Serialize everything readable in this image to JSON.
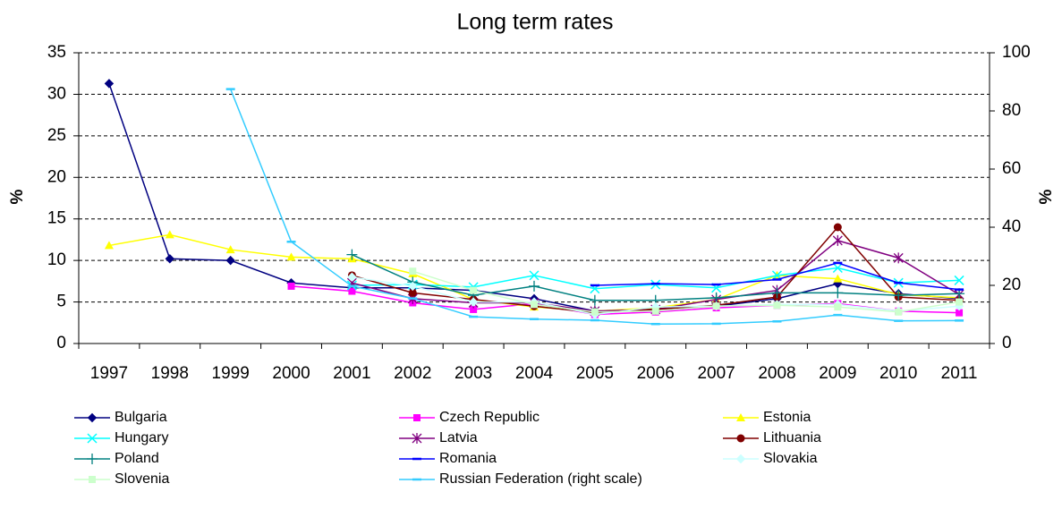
{
  "chart_data": {
    "type": "line",
    "title": "Long term rates",
    "y_label": "%",
    "y2_label": "%",
    "categories": [
      "1997",
      "1998",
      "1999",
      "2000",
      "2001",
      "2002",
      "2003",
      "2004",
      "2005",
      "2006",
      "2007",
      "2008",
      "2009",
      "2010",
      "2011"
    ],
    "ylim": [
      0,
      35
    ],
    "yticks": [
      0,
      5,
      10,
      15,
      20,
      25,
      30,
      35
    ],
    "y2lim": [
      0,
      100
    ],
    "y2ticks": [
      0,
      20,
      40,
      60,
      80,
      100
    ],
    "grid": true,
    "series": [
      {
        "name": "Bulgaria",
        "color": "#000080",
        "marker": "diamond",
        "values": [
          31.3,
          10.2,
          10.0,
          7.3,
          6.7,
          6.7,
          6.4,
          5.4,
          3.9,
          4.2,
          4.5,
          5.4,
          7.2,
          6.0,
          5.4
        ]
      },
      {
        "name": "Czech Republic",
        "color": "#ff00ff",
        "marker": "square",
        "values": [
          null,
          null,
          null,
          6.9,
          6.3,
          4.9,
          4.1,
          4.8,
          3.5,
          3.8,
          4.3,
          4.6,
          4.8,
          3.9,
          3.7
        ]
      },
      {
        "name": "Estonia",
        "color": "#ffff00",
        "marker": "triangle",
        "values": [
          11.8,
          13.1,
          11.3,
          10.4,
          10.2,
          8.4,
          5.3,
          4.4,
          3.9,
          4.3,
          5.3,
          8.2,
          7.8,
          5.9,
          5.5
        ]
      },
      {
        "name": "Hungary",
        "color": "#00ffff",
        "marker": "x",
        "values": [
          null,
          null,
          null,
          null,
          7.0,
          7.1,
          6.8,
          8.2,
          6.6,
          7.1,
          6.7,
          8.2,
          9.1,
          7.3,
          7.6
        ]
      },
      {
        "name": "Latvia",
        "color": "#800080",
        "marker": "star",
        "values": [
          null,
          null,
          null,
          null,
          7.3,
          5.4,
          4.9,
          4.9,
          3.9,
          4.1,
          5.3,
          6.4,
          12.4,
          10.3,
          5.9
        ]
      },
      {
        "name": "Lithuania",
        "color": "#800000",
        "marker": "circle",
        "values": [
          null,
          null,
          null,
          null,
          8.2,
          6.1,
          5.3,
          4.5,
          3.7,
          4.1,
          4.6,
          5.6,
          14.0,
          5.6,
          5.2
        ]
      },
      {
        "name": "Poland",
        "color": "#008080",
        "marker": "plus",
        "values": [
          null,
          null,
          null,
          null,
          10.7,
          7.4,
          5.8,
          6.9,
          5.2,
          5.2,
          5.5,
          6.1,
          6.1,
          5.8,
          6.0
        ]
      },
      {
        "name": "Romania",
        "color": "#0000ff",
        "marker": "dash",
        "values": [
          null,
          null,
          null,
          null,
          null,
          null,
          null,
          null,
          7.0,
          7.2,
          7.1,
          7.7,
          9.7,
          7.3,
          6.5
        ]
      },
      {
        "name": "Slovakia",
        "color": "#ccffff",
        "marker": "diamond",
        "values": [
          null,
          null,
          null,
          null,
          8.0,
          6.9,
          5.0,
          5.0,
          3.5,
          4.4,
          4.5,
          4.7,
          4.7,
          3.9,
          4.5
        ]
      },
      {
        "name": "Slovenia",
        "color": "#ccffcc",
        "marker": "square",
        "values": [
          null,
          null,
          null,
          null,
          null,
          8.7,
          6.4,
          4.7,
          3.8,
          3.9,
          4.5,
          4.6,
          4.4,
          3.8,
          5.0
        ]
      },
      {
        "name": "Russian Federation (right scale)",
        "color": "#33ccff",
        "marker": "dash",
        "axis": "y2",
        "values": [
          null,
          null,
          87.5,
          35.0,
          19.7,
          15.5,
          9.2,
          8.4,
          8.0,
          6.7,
          6.8,
          7.6,
          9.8,
          7.8,
          7.9
        ]
      }
    ]
  }
}
